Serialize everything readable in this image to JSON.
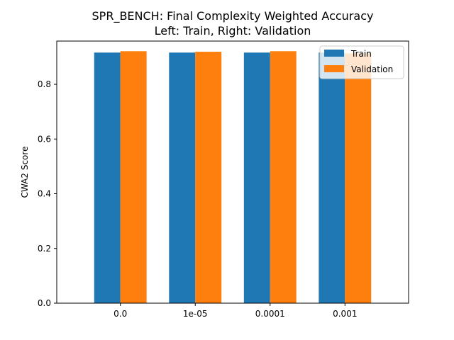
{
  "chart_data": {
    "type": "bar",
    "title": "SPR_BENCH: Final Complexity Weighted Accuracy",
    "subtitle": "Left: Train, Right: Validation",
    "xlabel": "",
    "ylabel": "CWA2 Score",
    "categories": [
      "0.0",
      "1e-05",
      "0.0001",
      "0.001"
    ],
    "series": [
      {
        "name": "Train",
        "color": "#1f77b4",
        "values": [
          0.916,
          0.916,
          0.916,
          0.916
        ]
      },
      {
        "name": "Validation",
        "color": "#ff7f0e",
        "values": [
          0.921,
          0.919,
          0.921,
          0.913
        ]
      }
    ],
    "ylim": [
      0,
      0.958
    ],
    "yticks": [
      "0.0",
      "0.2",
      "0.4",
      "0.6",
      "0.8"
    ],
    "ytick_values": [
      0,
      0.2,
      0.4,
      0.6,
      0.8
    ],
    "grid": false,
    "legend_position": "top-right"
  }
}
